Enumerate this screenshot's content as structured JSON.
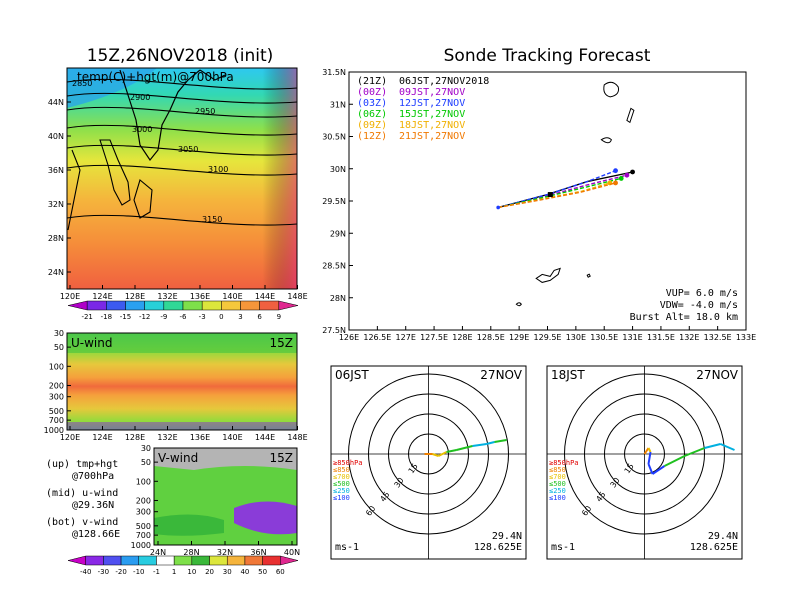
{
  "left": {
    "title": "15Z,26NOV2018 (init)",
    "map": {
      "label": "temp(C)+hgt(m)@700hPa",
      "contours": [
        "2850",
        "2900",
        "2950",
        "3000",
        "3050",
        "3100",
        "3150"
      ],
      "xticks": [
        "120E",
        "124E",
        "128E",
        "132E",
        "136E",
        "140E",
        "144E",
        "148E"
      ],
      "yticks": [
        "24N",
        "28N",
        "32N",
        "36N",
        "40N",
        "44N"
      ],
      "colorbar": [
        "-21",
        "-18",
        "-15",
        "-12",
        "-9",
        "-6",
        "-3",
        "0",
        "3",
        "6",
        "9"
      ]
    },
    "uwind": {
      "label": "U-wind",
      "time": "15Z",
      "yticks": [
        "30",
        "50",
        "100",
        "200",
        "300",
        "500",
        "700",
        "1000"
      ],
      "xticks": [
        "120E",
        "124E",
        "128E",
        "132E",
        "136E",
        "140E",
        "144E",
        "148E"
      ]
    },
    "vwind": {
      "label": "V-wind",
      "time": "15Z",
      "yticks": [
        "30",
        "50",
        "100",
        "200",
        "300",
        "500",
        "700",
        "1000"
      ],
      "xticks": [
        "24N",
        "28N",
        "32N",
        "36N",
        "40N"
      ]
    },
    "notes": [
      [
        "(up) tmp+hgt",
        "@700hPa"
      ],
      [
        "(mid) u-wind",
        "@29.36N"
      ],
      [
        "(bot) v-wind",
        "@128.66E"
      ]
    ],
    "wind_colorbar": [
      "-40",
      "-30",
      "-20",
      "-10",
      "-1",
      "1",
      "10",
      "20",
      "30",
      "40",
      "50",
      "60"
    ]
  },
  "right": {
    "title": "Sonde Tracking Forecast",
    "legend": [
      {
        "code": "(21Z)",
        "text": "06JST,27NOV2018",
        "color": "#000000"
      },
      {
        "code": "(00Z)",
        "text": "09JST,27NOV",
        "color": "#a000c8"
      },
      {
        "code": "(03Z)",
        "text": "12JST,27NOV",
        "color": "#1e3cff"
      },
      {
        "code": "(06Z)",
        "text": "15JST,27NOV",
        "color": "#00c800"
      },
      {
        "code": "(09Z)",
        "text": "18JST,27NOV",
        "color": "#f0b000"
      },
      {
        "code": "(12Z)",
        "text": "21JST,27NOV",
        "color": "#f07800"
      }
    ],
    "params": [
      "VUP=  6.0 m/s",
      "VDW= -4.0 m/s",
      "Burst Alt= 18.0 km"
    ],
    "xticks": [
      "126E",
      "126.5E",
      "127E",
      "127.5E",
      "128E",
      "128.5E",
      "129E",
      "129.5E",
      "130E",
      "130.5E",
      "131E",
      "131.5E",
      "132E",
      "132.5E",
      "133E"
    ],
    "yticks": [
      "27.5N",
      "28N",
      "28.5N",
      "29N",
      "29.5N",
      "30N",
      "30.5N",
      "31N",
      "31.5N"
    ],
    "hodographs": [
      {
        "time": "06JST",
        "date": "27NOV",
        "lat": "29.4N",
        "lon": "128.625E",
        "unit": "ms-1"
      },
      {
        "time": "18JST",
        "date": "27NOV",
        "lat": "29.4N",
        "lon": "128.625E",
        "unit": "ms-1"
      }
    ],
    "rings": [
      "15",
      "30",
      "45",
      "60"
    ],
    "levels": [
      {
        "label": "≥850hPa",
        "color": "#e00000"
      },
      {
        "label": "≤850",
        "color": "#f08000"
      },
      {
        "label": "≤700",
        "color": "#e8c000"
      },
      {
        "label": "≤500",
        "color": "#20c020"
      },
      {
        "label": "≤250",
        "color": "#00b0e0"
      },
      {
        "label": "≤100",
        "color": "#1e3cff"
      }
    ]
  },
  "chart_data": [
    {
      "type": "heatmap",
      "title": "15Z,26NOV2018 (init)",
      "field": "temp(C)+hgt(m)@700hPa",
      "xlim": [
        120,
        150
      ],
      "ylim": [
        22,
        48
      ],
      "colorbar_levels": [
        -21,
        -18,
        -15,
        -12,
        -9,
        -6,
        -3,
        0,
        3,
        6,
        9
      ],
      "height_contours_m": [
        2850,
        2900,
        2950,
        3000,
        3050,
        3100,
        3150
      ]
    },
    {
      "type": "line",
      "title": "Sonde Tracking Forecast",
      "xlim": [
        126,
        133
      ],
      "ylim": [
        27.5,
        31.5
      ],
      "series": [
        {
          "name": "(21Z) 06JST,27NOV2018",
          "x": [
            128.63,
            129.5,
            130.2,
            131.0
          ],
          "y": [
            29.4,
            29.6,
            29.8,
            29.95
          ]
        },
        {
          "name": "(00Z) 09JST,27NOV",
          "x": [
            128.63,
            129.5,
            130.2,
            130.9
          ],
          "y": [
            29.4,
            29.58,
            29.75,
            29.9
          ]
        },
        {
          "name": "(03Z) 12JST,27NOV",
          "x": [
            128.63,
            129.5,
            130.2,
            130.7
          ],
          "y": [
            29.4,
            29.6,
            29.8,
            29.97
          ]
        },
        {
          "name": "(06Z) 15JST,27NOV",
          "x": [
            128.63,
            129.5,
            130.2,
            130.8
          ],
          "y": [
            29.4,
            29.57,
            29.72,
            29.85
          ]
        },
        {
          "name": "(09Z) 18JST,27NOV",
          "x": [
            128.63,
            129.4,
            130.1,
            130.6
          ],
          "y": [
            29.4,
            29.53,
            29.65,
            29.78
          ]
        },
        {
          "name": "(12Z) 21JST,27NOV",
          "x": [
            128.63,
            129.4,
            130.1,
            130.7
          ],
          "y": [
            29.4,
            29.52,
            29.64,
            29.78
          ]
        }
      ]
    },
    {
      "type": "heatmap",
      "title": "U-wind",
      "time": "15Z",
      "xlim": [
        120,
        150
      ],
      "ylim_hPa": [
        1000,
        30
      ],
      "colorbar_levels": [
        -40,
        -30,
        -20,
        -10,
        -1,
        1,
        10,
        20,
        30,
        40,
        50,
        60
      ]
    },
    {
      "type": "heatmap",
      "title": "V-wind",
      "time": "15Z",
      "xlim": [
        22,
        40
      ],
      "ylim_hPa": [
        1000,
        30
      ],
      "colorbar_levels": [
        -40,
        -30,
        -20,
        -10,
        -1,
        1,
        10,
        20,
        30,
        40,
        50,
        60
      ]
    }
  ]
}
